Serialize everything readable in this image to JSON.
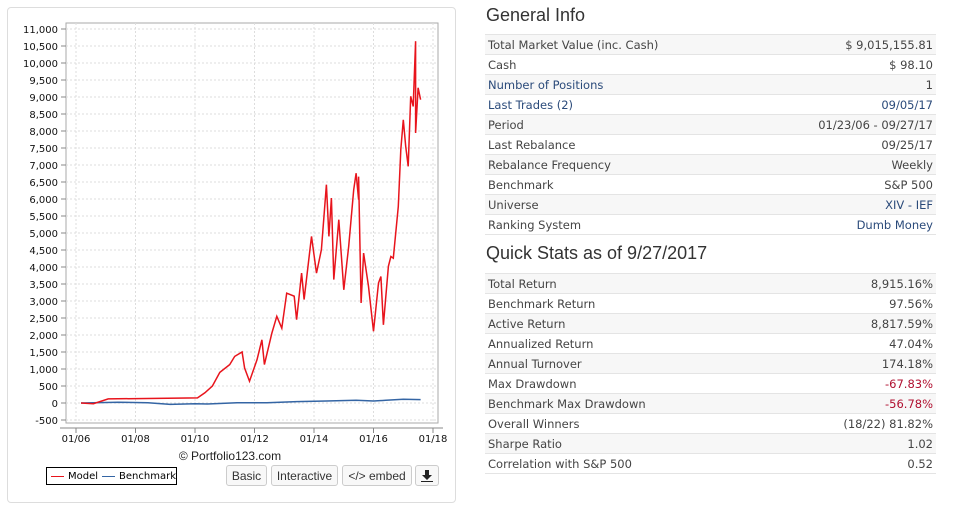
{
  "chart_data": {
    "type": "line",
    "ylim": [
      -500,
      11000
    ],
    "yticks": [
      "11,000",
      "10,500",
      "10,000",
      "9,500",
      "9,000",
      "8,500",
      "8,000",
      "7,500",
      "7,000",
      "6,500",
      "6,000",
      "5,500",
      "5,000",
      "4,500",
      "4,000",
      "3,500",
      "3,000",
      "2,500",
      "2,000",
      "1,500",
      "1,000",
      "500",
      "0",
      "-500"
    ],
    "ytick_values": [
      11000,
      10500,
      10000,
      9500,
      9000,
      8500,
      8000,
      7500,
      7000,
      6500,
      6000,
      5500,
      5000,
      4500,
      4000,
      3500,
      3000,
      2500,
      2000,
      1500,
      1000,
      500,
      0,
      -500
    ],
    "xticks": [
      "01/06",
      "01/08",
      "01/10",
      "01/12",
      "01/14",
      "01/16",
      "01/18"
    ],
    "xtick_dates": [
      "2006-01",
      "2008-01",
      "2010-01",
      "2012-01",
      "2014-01",
      "2016-01",
      "2018-01"
    ],
    "xlim": [
      "2006-01",
      "2018-01"
    ],
    "grid": true,
    "legend": "bottom-left",
    "series": [
      {
        "name": "Model",
        "color": "#e8141c",
        "points": [
          [
            "2006-03",
            0
          ],
          [
            "2006-08",
            -20
          ],
          [
            "2007-02",
            120
          ],
          [
            "2010-02",
            150
          ],
          [
            "2010-05",
            300
          ],
          [
            "2010-08",
            500
          ],
          [
            "2010-11",
            900
          ],
          [
            "2011-03",
            1130
          ],
          [
            "2011-05",
            1370
          ],
          [
            "2011-08",
            1500
          ],
          [
            "2011-09",
            1030
          ],
          [
            "2011-11",
            640
          ],
          [
            "2012-02",
            1270
          ],
          [
            "2012-04",
            1860
          ],
          [
            "2012-05",
            1130
          ],
          [
            "2012-08",
            2060
          ],
          [
            "2012-10",
            2550
          ],
          [
            "2012-12",
            2200
          ],
          [
            "2013-02",
            3230
          ],
          [
            "2013-05",
            3140
          ],
          [
            "2013-06",
            2450
          ],
          [
            "2013-08",
            3820
          ],
          [
            "2013-09",
            3040
          ],
          [
            "2013-12",
            4900
          ],
          [
            "2014-02",
            3820
          ],
          [
            "2014-04",
            4510
          ],
          [
            "2014-06",
            6420
          ],
          [
            "2014-07",
            4900
          ],
          [
            "2014-08",
            6030
          ],
          [
            "2014-09",
            3630
          ],
          [
            "2014-11",
            5390
          ],
          [
            "2015-01",
            3330
          ],
          [
            "2015-03",
            4610
          ],
          [
            "2015-05",
            6270
          ],
          [
            "2015-06",
            6760
          ],
          [
            "2015-07",
            5980
          ],
          [
            "2015-07",
            6660
          ],
          [
            "2015-08",
            2940
          ],
          [
            "2015-09",
            4410
          ],
          [
            "2015-11",
            3430
          ],
          [
            "2016-01",
            2110
          ],
          [
            "2016-03",
            3530
          ],
          [
            "2016-04",
            3720
          ],
          [
            "2016-05",
            2300
          ],
          [
            "2016-07",
            4020
          ],
          [
            "2016-08",
            4310
          ],
          [
            "2016-09",
            4260
          ],
          [
            "2016-11",
            5780
          ],
          [
            "2016-12",
            7450
          ],
          [
            "2017-01",
            8330
          ],
          [
            "2017-02",
            7550
          ],
          [
            "2017-03",
            6960
          ],
          [
            "2017-04",
            9020
          ],
          [
            "2017-05",
            8720
          ],
          [
            "2017-06",
            10640
          ],
          [
            "2017-06",
            7940
          ],
          [
            "2017-07",
            9270
          ],
          [
            "2017-08",
            8920
          ]
        ]
      },
      {
        "name": "Benchmark",
        "color": "#3465a4",
        "points": [
          [
            "2006-03",
            0
          ],
          [
            "2007-06",
            20
          ],
          [
            "2008-06",
            10
          ],
          [
            "2009-03",
            -40
          ],
          [
            "2010-01",
            -20
          ],
          [
            "2010-06",
            -30
          ],
          [
            "2011-06",
            10
          ],
          [
            "2012-06",
            10
          ],
          [
            "2013-06",
            40
          ],
          [
            "2014-06",
            60
          ],
          [
            "2015-06",
            80
          ],
          [
            "2016-01",
            60
          ],
          [
            "2016-06",
            80
          ],
          [
            "2017-01",
            110
          ],
          [
            "2017-08",
            100
          ]
        ]
      }
    ]
  },
  "chart_footer": {
    "copyright": "© Portfolio123.com",
    "legend": [
      "Model",
      "Benchmark"
    ],
    "buttons": {
      "basic": "Basic",
      "interactive": "Interactive",
      "embed": "</> embed",
      "download_icon": "download-icon"
    }
  },
  "general_info": {
    "title": "General Info",
    "rows": [
      {
        "label": "Total Market Value (inc. Cash)",
        "value": "$ 9,015,155.81"
      },
      {
        "label": "Cash",
        "value": "$ 98.10"
      },
      {
        "label": "Number of Positions",
        "value": "1",
        "label_link": true
      },
      {
        "label": "Last Trades (2)",
        "value": "09/05/17",
        "label_link": true,
        "value_link": true
      },
      {
        "label": "Period",
        "value": "01/23/06 - 09/27/17"
      },
      {
        "label": "Last Rebalance",
        "value": "09/25/17"
      },
      {
        "label": "Rebalance Frequency",
        "value": "Weekly"
      },
      {
        "label": "Benchmark",
        "value": "S&P 500"
      },
      {
        "label": "Universe",
        "value": "XIV - IEF",
        "value_link": true
      },
      {
        "label": "Ranking System",
        "value": "Dumb Money",
        "value_link": true
      }
    ]
  },
  "quick_stats": {
    "title": "Quick Stats as of 9/27/2017",
    "rows": [
      {
        "label": "Total Return",
        "value": "8,915.16%"
      },
      {
        "label": "Benchmark Return",
        "value": "97.56%"
      },
      {
        "label": "Active Return",
        "value": "8,817.59%"
      },
      {
        "label": "Annualized Return",
        "value": "47.04%"
      },
      {
        "label": "Annual Turnover",
        "value": "174.18%"
      },
      {
        "label": "Max Drawdown",
        "value": "-67.83%",
        "negative": true
      },
      {
        "label": "Benchmark Max Drawdown",
        "value": "-56.78%",
        "negative": true
      },
      {
        "label": "Overall Winners",
        "value": "(18/22) 81.82%"
      },
      {
        "label": "Sharpe Ratio",
        "value": "1.02"
      },
      {
        "label": "Correlation with S&P 500",
        "value": "0.52"
      }
    ]
  }
}
